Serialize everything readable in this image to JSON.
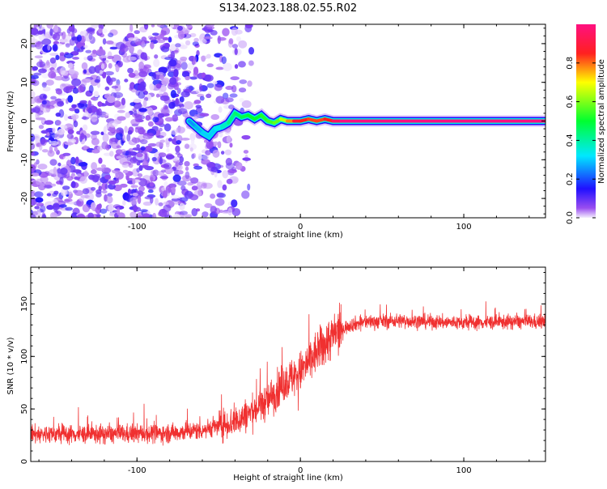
{
  "title": "S134.2023.188.02.55.R02",
  "chart_data": [
    {
      "type": "heatmap",
      "xlabel": "Height of straight line (km)",
      "ylabel": "Frequency (Hz)",
      "xlim": [
        -165,
        150
      ],
      "ylim": [
        -25,
        25
      ],
      "xticks": [
        -100,
        0,
        100
      ],
      "yticks": [
        -20,
        -10,
        0,
        10,
        20
      ],
      "colorbar": {
        "label": "Normalized spectral amplitude",
        "range": [
          0,
          1
        ],
        "ticks": [
          0.0,
          0.2,
          0.4,
          0.6,
          0.8
        ]
      },
      "ridge": {
        "x": [
          -68,
          -64,
          -60,
          -56,
          -52,
          -48,
          -44,
          -40,
          -36,
          -32,
          -28,
          -24,
          -20,
          -16,
          -12,
          -8,
          -4,
          0,
          5,
          10,
          15,
          20,
          25,
          50,
          100,
          150
        ],
        "y": [
          0.0,
          -1.5,
          -3.0,
          -4.0,
          -2.0,
          -1.5,
          -0.5,
          2.0,
          1.0,
          1.5,
          0.5,
          1.5,
          0.0,
          -0.5,
          0.5,
          0.0,
          0.0,
          0.0,
          0.5,
          0.0,
          0.5,
          0.0,
          0.0,
          0.0,
          0.0,
          0.0
        ],
        "amplitude": [
          0.15,
          0.15,
          0.2,
          0.2,
          0.2,
          0.25,
          0.3,
          0.35,
          0.35,
          0.4,
          0.4,
          0.4,
          0.45,
          0.45,
          0.5,
          0.6,
          0.75,
          0.8,
          0.7,
          0.75,
          0.7,
          0.8,
          0.9,
          0.9,
          0.9,
          0.9
        ]
      },
      "noise_region": {
        "xlim": [
          -165,
          -40
        ],
        "amplitude_max": 0.1
      }
    },
    {
      "type": "line",
      "xlabel": "Height of straight line (km)",
      "ylabel": "SNR (10 * v/v)",
      "xlim": [
        -165,
        150
      ],
      "ylim": [
        0,
        185
      ],
      "xticks": [
        -100,
        0,
        100
      ],
      "yticks": [
        0,
        50,
        100,
        150
      ],
      "color": "#f03030",
      "trend": {
        "x": [
          -165,
          -120,
          -80,
          -60,
          -40,
          -30,
          -20,
          -10,
          0,
          10,
          20,
          30,
          40,
          60,
          100,
          130,
          150
        ],
        "y": [
          26,
          26,
          27,
          30,
          38,
          47,
          58,
          75,
          85,
          104,
          120,
          130,
          133,
          134,
          132,
          133,
          133
        ]
      }
    }
  ]
}
